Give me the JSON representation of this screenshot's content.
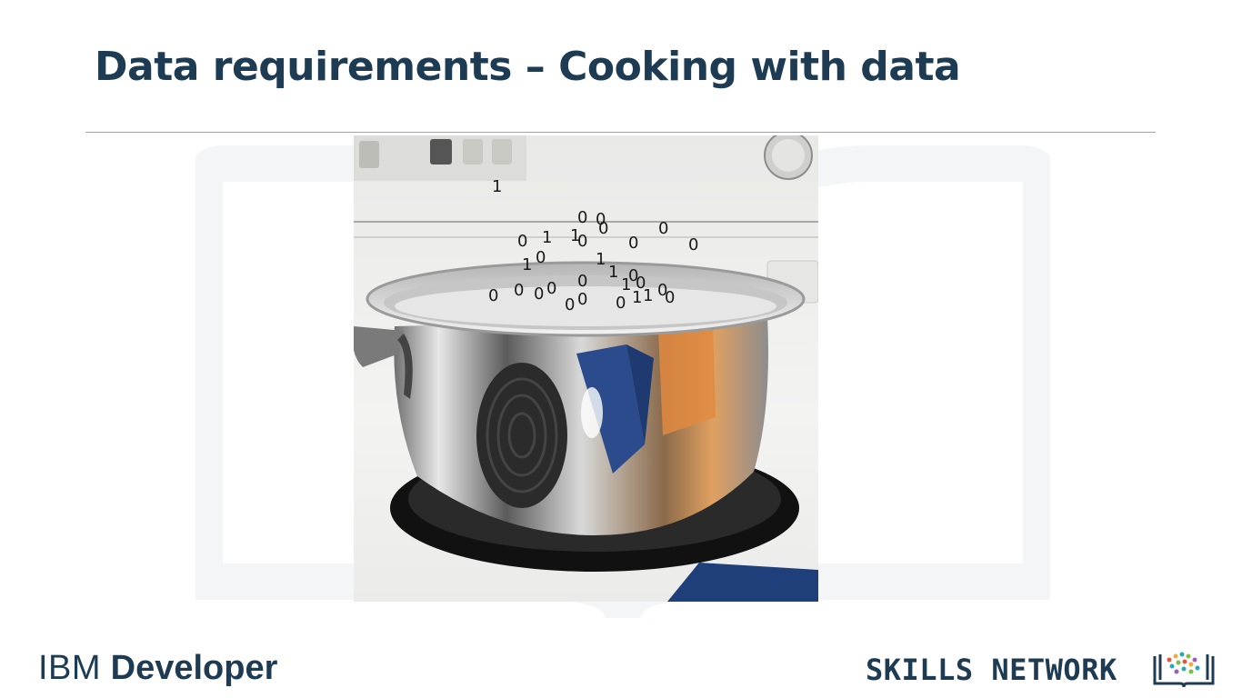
{
  "slide": {
    "title": "Data requirements – Cooking with data"
  },
  "image": {
    "binary_digits": [
      {
        "v": "1"
      },
      {
        "v": "0"
      },
      {
        "v": "0"
      },
      {
        "v": "0"
      },
      {
        "v": "0"
      },
      {
        "v": "1"
      },
      {
        "v": "1"
      },
      {
        "v": "0"
      },
      {
        "v": "0"
      },
      {
        "v": "0"
      },
      {
        "v": "0"
      },
      {
        "v": "1"
      },
      {
        "v": "0"
      },
      {
        "v": "1"
      },
      {
        "v": "1"
      },
      {
        "v": "0"
      },
      {
        "v": "1"
      },
      {
        "v": "0"
      },
      {
        "v": "0"
      },
      {
        "v": "0"
      },
      {
        "v": "0"
      },
      {
        "v": "0"
      },
      {
        "v": "0"
      },
      {
        "v": "0"
      },
      {
        "v": "0"
      },
      {
        "v": "0"
      },
      {
        "v": "1"
      },
      {
        "v": "1"
      },
      {
        "v": "0"
      },
      {
        "v": "0"
      }
    ]
  },
  "footer": {
    "ibm": "IBM",
    "developer": "Developer",
    "skills_network": "SKILLS NETWORK"
  },
  "colors": {
    "title": "#1d3b52",
    "rule": "#8fa8bd"
  }
}
